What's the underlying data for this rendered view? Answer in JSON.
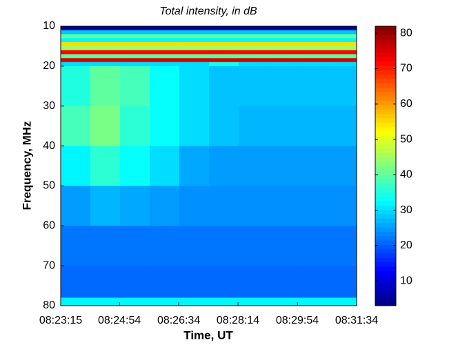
{
  "chart_data": {
    "type": "heatmap",
    "title": "Total intensity, in dB",
    "x_label": "Time, UT",
    "y_label": "Frequency, MHz",
    "xlim": [
      0,
      499
    ],
    "xticks": [
      {
        "value": 0,
        "label": "08:23:15"
      },
      {
        "value": 99,
        "label": "08:24:54"
      },
      {
        "value": 199,
        "label": "08:26:34"
      },
      {
        "value": 299,
        "label": "08:28:14"
      },
      {
        "value": 399,
        "label": "08:29:54"
      },
      {
        "value": 499,
        "label": "08:31:34"
      }
    ],
    "ylim": [
      80,
      10
    ],
    "yticks": [
      10,
      20,
      30,
      40,
      50,
      60,
      70,
      80
    ],
    "x_edges": [
      0,
      50,
      100,
      150,
      200,
      250,
      300,
      350,
      400,
      450,
      499
    ],
    "y_edges": [
      10,
      11,
      12,
      13,
      14,
      15,
      16,
      17,
      18,
      19,
      20,
      30,
      40,
      50,
      60,
      70,
      78,
      80
    ],
    "values": [
      [
        5,
        5,
        5,
        5,
        5,
        5,
        5,
        5,
        5,
        5
      ],
      [
        28,
        28,
        28,
        28,
        28,
        28,
        28,
        28,
        28,
        28
      ],
      [
        40,
        40,
        40,
        40,
        40,
        40,
        40,
        40,
        40,
        40
      ],
      [
        32,
        32,
        32,
        32,
        32,
        32,
        32,
        32,
        32,
        32
      ],
      [
        55,
        55,
        55,
        55,
        55,
        55,
        55,
        55,
        55,
        55
      ],
      [
        45,
        45,
        45,
        45,
        45,
        45,
        45,
        45,
        45,
        45
      ],
      [
        72,
        72,
        72,
        72,
        72,
        72,
        72,
        72,
        72,
        72
      ],
      [
        40,
        40,
        40,
        40,
        40,
        40,
        40,
        40,
        40,
        40
      ],
      [
        75,
        75,
        75,
        75,
        75,
        75,
        75,
        75,
        75,
        75
      ],
      [
        30,
        30,
        30,
        30,
        30,
        34,
        30,
        30,
        30,
        30
      ],
      [
        35,
        40,
        38,
        33,
        30,
        28,
        28,
        28,
        28,
        28
      ],
      [
        38,
        42,
        36,
        33,
        30,
        28,
        27,
        27,
        27,
        27
      ],
      [
        32,
        36,
        33,
        30,
        26,
        25,
        25,
        25,
        25,
        25
      ],
      [
        25,
        27,
        26,
        25,
        24,
        24,
        24,
        24,
        24,
        24
      ],
      [
        22,
        22,
        22,
        22,
        22,
        22,
        22,
        22,
        22,
        22
      ],
      [
        21,
        21,
        21,
        21,
        21,
        21,
        21,
        21,
        21,
        21
      ],
      [
        32,
        32,
        32,
        32,
        32,
        32,
        32,
        32,
        32,
        32
      ]
    ],
    "colormap": "jet",
    "clim": [
      3,
      82
    ],
    "cticks": [
      10,
      20,
      30,
      40,
      50,
      60,
      70,
      80
    ]
  }
}
